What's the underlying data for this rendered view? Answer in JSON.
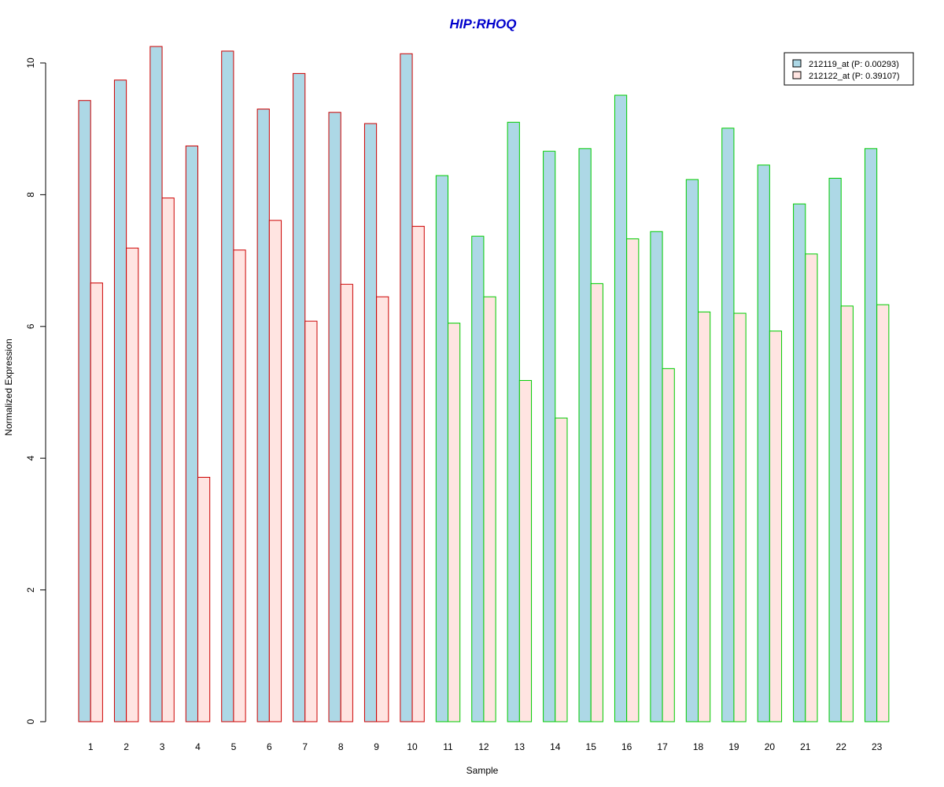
{
  "chart_data": {
    "type": "bar",
    "title": "HIP:RHOQ",
    "title_color": "#0000cc",
    "xlabel": "Sample",
    "ylabel": "Normalized Expression",
    "ylim": [
      0,
      10.25
    ],
    "yticks": [
      0,
      2,
      4,
      6,
      8,
      10
    ],
    "grid": false,
    "legend_position": "top-right",
    "categories": [
      "1",
      "2",
      "3",
      "4",
      "5",
      "6",
      "7",
      "8",
      "9",
      "10",
      "11",
      "12",
      "13",
      "14",
      "15",
      "16",
      "17",
      "18",
      "19",
      "20",
      "21",
      "22",
      "23"
    ],
    "group_colors": [
      "#cc0000",
      "#cc0000",
      "#cc0000",
      "#cc0000",
      "#cc0000",
      "#cc0000",
      "#cc0000",
      "#cc0000",
      "#cc0000",
      "#cc0000",
      "#00cc00",
      "#00cc00",
      "#00cc00",
      "#00cc00",
      "#00cc00",
      "#00cc00",
      "#00cc00",
      "#00cc00",
      "#00cc00",
      "#00cc00",
      "#00cc00",
      "#00cc00",
      "#00cc00"
    ],
    "series": [
      {
        "name": "212119_at (P: 0.00293)",
        "fill": "#add8e6",
        "values": [
          9.43,
          9.74,
          10.25,
          8.74,
          10.18,
          9.3,
          9.84,
          9.25,
          9.08,
          10.14,
          8.29,
          7.37,
          9.1,
          8.66,
          8.7,
          9.51,
          7.44,
          8.23,
          9.01,
          8.45,
          7.86,
          8.25,
          8.7
        ]
      },
      {
        "name": "212122_at (P: 0.39107)",
        "fill": "#ffe4e1",
        "values": [
          6.66,
          7.19,
          7.95,
          3.71,
          7.16,
          7.61,
          6.08,
          6.64,
          6.45,
          7.52,
          6.05,
          6.45,
          5.18,
          4.61,
          6.65,
          7.33,
          5.36,
          6.22,
          6.2,
          5.93,
          7.1,
          6.31,
          6.33
        ]
      }
    ]
  }
}
